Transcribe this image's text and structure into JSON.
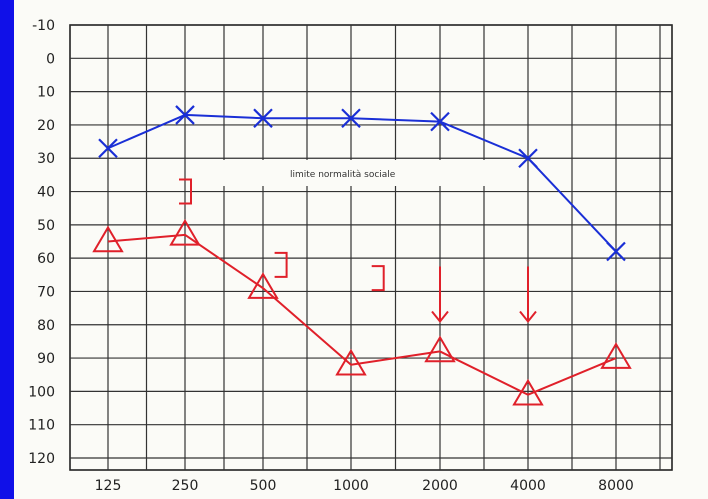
{
  "chart_data": {
    "type": "line",
    "x_categories": [
      "125",
      "250",
      "500",
      "1000",
      "2000",
      "4000",
      "8000"
    ],
    "y_ticks": [
      "-10",
      "0",
      "10",
      "20",
      "30",
      "40",
      "50",
      "60",
      "70",
      "80",
      "90",
      "100",
      "110",
      "120"
    ],
    "ylim": [
      -10,
      120
    ],
    "y_inverted": true,
    "grid": true,
    "annotation": "limite normalità sociale",
    "series": [
      {
        "color": "#1a2fd6",
        "marker": "x",
        "values": [
          27,
          17,
          18,
          18,
          19,
          30,
          58
        ]
      },
      {
        "color": "#e0202a",
        "marker": "triangle",
        "values": [
          55,
          53,
          69,
          92,
          88,
          101,
          90
        ]
      }
    ],
    "extra_marks": [
      {
        "color": "#e0202a",
        "marker": "bracket",
        "x_index": 1.0,
        "y": 40
      },
      {
        "color": "#e0202a",
        "marker": "bracket",
        "x_index": 2.2,
        "y": 62
      },
      {
        "color": "#e0202a",
        "marker": "bracket",
        "x_index": 3.3,
        "y": 66
      },
      {
        "color": "#e0202a",
        "marker": "arrow-down",
        "x_index": 4.0,
        "y": 79
      },
      {
        "color": "#e0202a",
        "marker": "arrow-down",
        "x_index": 5.0,
        "y": 79
      }
    ]
  }
}
